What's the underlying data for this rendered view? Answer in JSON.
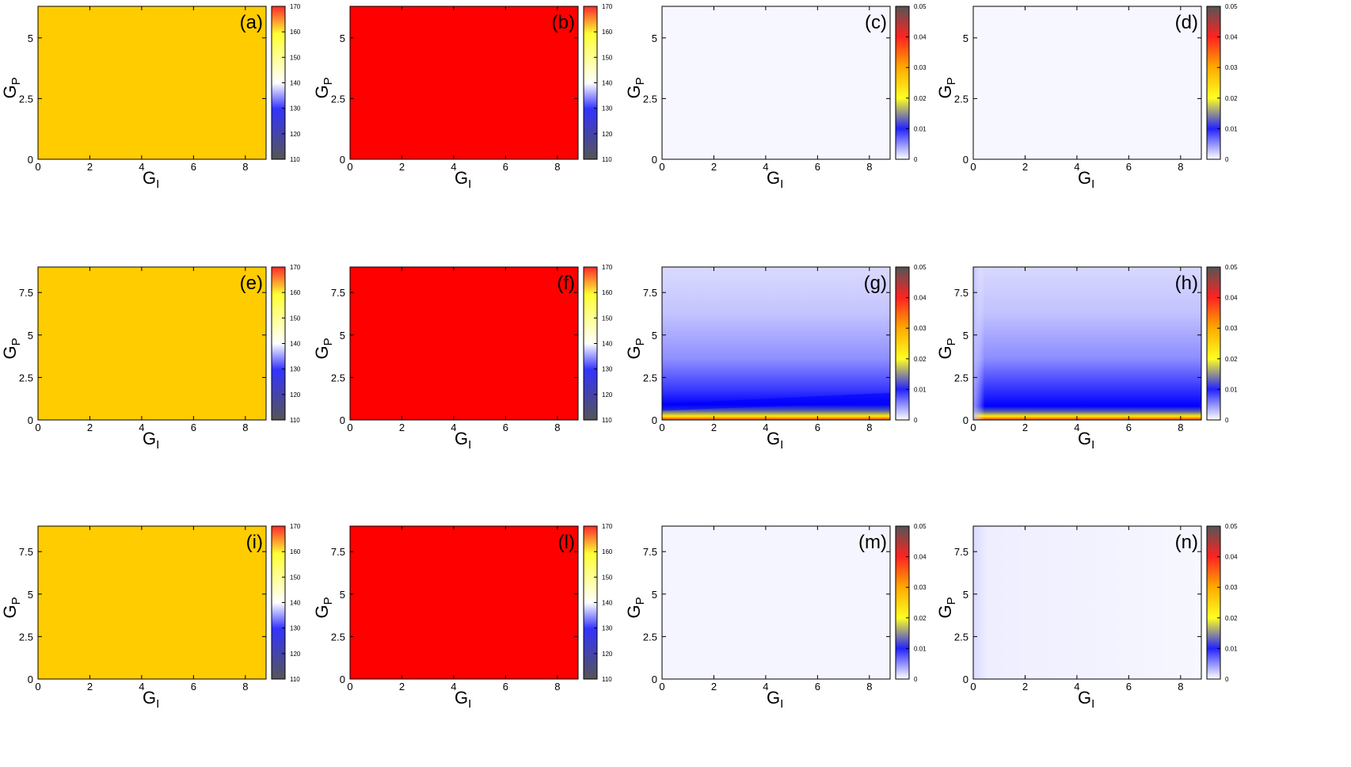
{
  "chart_data": [
    {
      "panel": "(a)",
      "type": "heatmap",
      "fill": "#ffcc00",
      "xlabel": "G",
      "xlabel_sub": "I",
      "ylabel": "G",
      "ylabel_sub": "P",
      "x_ticks": [
        "0",
        "2",
        "4",
        "6",
        "8"
      ],
      "x_tick_values": [
        0,
        2,
        4,
        6,
        8
      ],
      "xlim": [
        0,
        8.8
      ],
      "y_ticks": [
        "0",
        "2.5",
        "5"
      ],
      "y_tick_values": [
        0,
        2.5,
        5
      ],
      "ylim": [
        0,
        6.3
      ],
      "colorbar": {
        "range": [
          110,
          170
        ],
        "ticks": [
          "110",
          "120",
          "130",
          "140",
          "150",
          "160",
          "170"
        ],
        "tick_values": [
          110,
          120,
          130,
          140,
          150,
          160,
          170
        ]
      }
    },
    {
      "panel": "(b)",
      "type": "heatmap",
      "fill": "#ff0000",
      "xlabel": "G",
      "xlabel_sub": "I",
      "ylabel": "G",
      "ylabel_sub": "P",
      "x_ticks": [
        "0",
        "2",
        "4",
        "6",
        "8"
      ],
      "x_tick_values": [
        0,
        2,
        4,
        6,
        8
      ],
      "xlim": [
        0,
        8.8
      ],
      "y_ticks": [
        "0",
        "2.5",
        "5"
      ],
      "y_tick_values": [
        0,
        2.5,
        5
      ],
      "ylim": [
        0,
        6.3
      ],
      "colorbar": {
        "range": [
          110,
          170
        ],
        "ticks": [
          "110",
          "120",
          "130",
          "140",
          "150",
          "160",
          "170"
        ],
        "tick_values": [
          110,
          120,
          130,
          140,
          150,
          160,
          170
        ]
      }
    },
    {
      "panel": "(c)",
      "type": "heatmap",
      "fill": "#f7f7ff",
      "xlabel": "G",
      "xlabel_sub": "I",
      "ylabel": "G",
      "ylabel_sub": "P",
      "x_ticks": [
        "0",
        "2",
        "4",
        "6",
        "8"
      ],
      "x_tick_values": [
        0,
        2,
        4,
        6,
        8
      ],
      "xlim": [
        0,
        8.8
      ],
      "y_ticks": [
        "0",
        "2.5",
        "5"
      ],
      "y_tick_values": [
        0,
        2.5,
        5
      ],
      "ylim": [
        0,
        6.3
      ],
      "colorbar": {
        "range": [
          0,
          0.05
        ],
        "ticks": [
          "0",
          "0.01",
          "0.02",
          "0.03",
          "0.04",
          "0.05"
        ],
        "tick_values": [
          0,
          0.01,
          0.02,
          0.03,
          0.04,
          0.05
        ]
      }
    },
    {
      "panel": "(d)",
      "type": "heatmap",
      "fill": "#f7f7ff",
      "xlabel": "G",
      "xlabel_sub": "I",
      "ylabel": "G",
      "ylabel_sub": "P",
      "x_ticks": [
        "0",
        "2",
        "4",
        "6",
        "8"
      ],
      "x_tick_values": [
        0,
        2,
        4,
        6,
        8
      ],
      "xlim": [
        0,
        8.8
      ],
      "y_ticks": [
        "0",
        "2.5",
        "5"
      ],
      "y_tick_values": [
        0,
        2.5,
        5
      ],
      "ylim": [
        0,
        6.3
      ],
      "colorbar": {
        "range": [
          0,
          0.05
        ],
        "ticks": [
          "0",
          "0.01",
          "0.02",
          "0.03",
          "0.04",
          "0.05"
        ],
        "tick_values": [
          0,
          0.01,
          0.02,
          0.03,
          0.04,
          0.05
        ]
      }
    },
    {
      "panel": "(e)",
      "type": "heatmap",
      "fill": "#ffcc00",
      "xlabel": "G",
      "xlabel_sub": "I",
      "ylabel": "G",
      "ylabel_sub": "P",
      "x_ticks": [
        "0",
        "2",
        "4",
        "6",
        "8"
      ],
      "x_tick_values": [
        0,
        2,
        4,
        6,
        8
      ],
      "xlim": [
        0,
        8.8
      ],
      "y_ticks": [
        "0",
        "2.5",
        "5",
        "7.5"
      ],
      "y_tick_values": [
        0,
        2.5,
        5,
        7.5
      ],
      "ylim": [
        0,
        9
      ],
      "colorbar": {
        "range": [
          110,
          170
        ],
        "ticks": [
          "110",
          "120",
          "130",
          "140",
          "150",
          "160",
          "170"
        ],
        "tick_values": [
          110,
          120,
          130,
          140,
          150,
          160,
          170
        ]
      }
    },
    {
      "panel": "(f)",
      "type": "heatmap",
      "fill": "#ff0000",
      "xlabel": "G",
      "xlabel_sub": "I",
      "ylabel": "G",
      "ylabel_sub": "P",
      "x_ticks": [
        "0",
        "2",
        "4",
        "6",
        "8"
      ],
      "x_tick_values": [
        0,
        2,
        4,
        6,
        8
      ],
      "xlim": [
        0,
        8.8
      ],
      "y_ticks": [
        "0",
        "2.5",
        "5",
        "7.5"
      ],
      "y_tick_values": [
        0,
        2.5,
        5,
        7.5
      ],
      "ylim": [
        0,
        9
      ],
      "colorbar": {
        "range": [
          110,
          170
        ],
        "ticks": [
          "110",
          "120",
          "130",
          "140",
          "150",
          "160",
          "170"
        ],
        "tick_values": [
          110,
          120,
          130,
          140,
          150,
          160,
          170
        ]
      }
    },
    {
      "panel": "(g)",
      "type": "heatmap",
      "fill": "gradient-g",
      "xlabel": "G",
      "xlabel_sub": "I",
      "ylabel": "G",
      "ylabel_sub": "P",
      "x_ticks": [
        "0",
        "2",
        "4",
        "6",
        "8"
      ],
      "x_tick_values": [
        0,
        2,
        4,
        6,
        8
      ],
      "xlim": [
        0,
        8.8
      ],
      "y_ticks": [
        "0",
        "2.5",
        "5",
        "7.5"
      ],
      "y_tick_values": [
        0,
        2.5,
        5,
        7.5
      ],
      "ylim": [
        0,
        9
      ],
      "colorbar": {
        "range": [
          0,
          0.05
        ],
        "ticks": [
          "0",
          "0.01",
          "0.02",
          "0.03",
          "0.04",
          "0.05"
        ],
        "tick_values": [
          0,
          0.01,
          0.02,
          0.03,
          0.04,
          0.05
        ]
      }
    },
    {
      "panel": "(h)",
      "type": "heatmap",
      "fill": "gradient-h",
      "xlabel": "G",
      "xlabel_sub": "I",
      "ylabel": "G",
      "ylabel_sub": "P",
      "x_ticks": [
        "0",
        "2",
        "4",
        "6",
        "8"
      ],
      "x_tick_values": [
        0,
        2,
        4,
        6,
        8
      ],
      "xlim": [
        0,
        8.8
      ],
      "y_ticks": [
        "0",
        "2.5",
        "5",
        "7.5"
      ],
      "y_tick_values": [
        0,
        2.5,
        5,
        7.5
      ],
      "ylim": [
        0,
        9
      ],
      "colorbar": {
        "range": [
          0,
          0.05
        ],
        "ticks": [
          "0",
          "0.01",
          "0.02",
          "0.03",
          "0.04",
          "0.05"
        ],
        "tick_values": [
          0,
          0.01,
          0.02,
          0.03,
          0.04,
          0.05
        ]
      }
    },
    {
      "panel": "(i)",
      "type": "heatmap",
      "fill": "#ffcc00",
      "xlabel": "G",
      "xlabel_sub": "I",
      "ylabel": "G",
      "ylabel_sub": "P",
      "x_ticks": [
        "0",
        "2",
        "4",
        "6",
        "8"
      ],
      "x_tick_values": [
        0,
        2,
        4,
        6,
        8
      ],
      "xlim": [
        0,
        8.8
      ],
      "y_ticks": [
        "0",
        "2.5",
        "5",
        "7.5"
      ],
      "y_tick_values": [
        0,
        2.5,
        5,
        7.5
      ],
      "ylim": [
        0,
        9
      ],
      "colorbar": {
        "range": [
          110,
          170
        ],
        "ticks": [
          "110",
          "120",
          "130",
          "140",
          "150",
          "160",
          "170"
        ],
        "tick_values": [
          110,
          120,
          130,
          140,
          150,
          160,
          170
        ]
      }
    },
    {
      "panel": "(l)",
      "type": "heatmap",
      "fill": "#ff0000",
      "xlabel": "G",
      "xlabel_sub": "I",
      "ylabel": "G",
      "ylabel_sub": "P",
      "x_ticks": [
        "0",
        "2",
        "4",
        "6",
        "8"
      ],
      "x_tick_values": [
        0,
        2,
        4,
        6,
        8
      ],
      "xlim": [
        0,
        8.8
      ],
      "y_ticks": [
        "0",
        "2.5",
        "5",
        "7.5"
      ],
      "y_tick_values": [
        0,
        2.5,
        5,
        7.5
      ],
      "ylim": [
        0,
        9
      ],
      "colorbar": {
        "range": [
          110,
          170
        ],
        "ticks": [
          "110",
          "120",
          "130",
          "140",
          "150",
          "160",
          "170"
        ],
        "tick_values": [
          110,
          120,
          130,
          140,
          150,
          160,
          170
        ]
      }
    },
    {
      "panel": "(m)",
      "type": "heatmap",
      "fill": "#f5f5ff",
      "xlabel": "G",
      "xlabel_sub": "I",
      "ylabel": "G",
      "ylabel_sub": "P",
      "x_ticks": [
        "0",
        "2",
        "4",
        "6",
        "8"
      ],
      "x_tick_values": [
        0,
        2,
        4,
        6,
        8
      ],
      "xlim": [
        0,
        8.8
      ],
      "y_ticks": [
        "0",
        "2.5",
        "5",
        "7.5"
      ],
      "y_tick_values": [
        0,
        2.5,
        5,
        7.5
      ],
      "ylim": [
        0,
        9
      ],
      "colorbar": {
        "range": [
          0,
          0.05
        ],
        "ticks": [
          "0",
          "0.01",
          "0.02",
          "0.03",
          "0.04",
          "0.05"
        ],
        "tick_values": [
          0,
          0.01,
          0.02,
          0.03,
          0.04,
          0.05
        ]
      }
    },
    {
      "panel": "(n)",
      "type": "heatmap",
      "fill": "gradient-n",
      "xlabel": "G",
      "xlabel_sub": "I",
      "ylabel": "G",
      "ylabel_sub": "P",
      "x_ticks": [
        "0",
        "2",
        "4",
        "6",
        "8"
      ],
      "x_tick_values": [
        0,
        2,
        4,
        6,
        8
      ],
      "xlim": [
        0,
        8.8
      ],
      "y_ticks": [
        "0",
        "2.5",
        "5",
        "7.5"
      ],
      "y_tick_values": [
        0,
        2.5,
        5,
        7.5
      ],
      "ylim": [
        0,
        9
      ],
      "colorbar": {
        "range": [
          0,
          0.05
        ],
        "ticks": [
          "0",
          "0.01",
          "0.02",
          "0.03",
          "0.04",
          "0.05"
        ],
        "tick_values": [
          0,
          0.01,
          0.02,
          0.03,
          0.04,
          0.05
        ]
      }
    }
  ]
}
